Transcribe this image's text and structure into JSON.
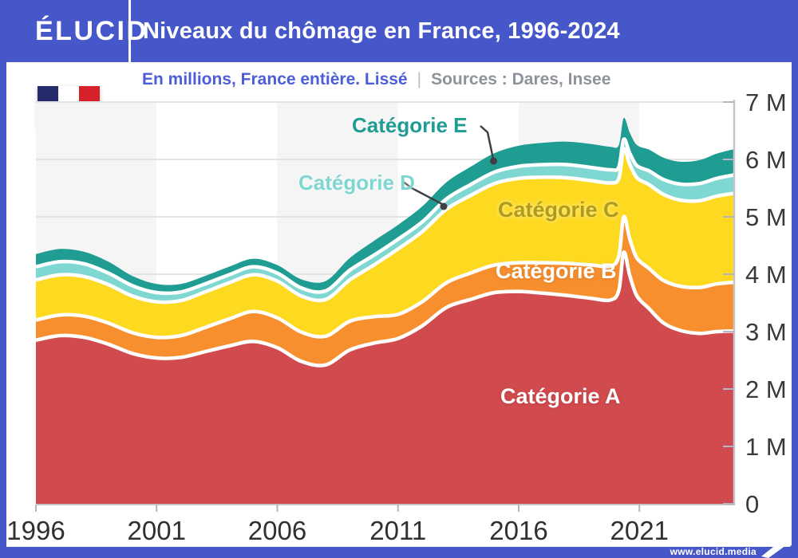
{
  "header": {
    "logo": "ÉLUCID",
    "title": "Niveaux du chômage en France, 1996-2024"
  },
  "subtitle": {
    "note": "En millions, France entière. Lissé",
    "separator": "|",
    "sources": "Sources : Dares, Insee"
  },
  "footer": {
    "url": "www.elucid.media"
  },
  "flag_icon": {
    "name": "france-flag-icon",
    "colors": [
      "#242a6a",
      "#ffffff",
      "#d6202a"
    ]
  },
  "chart_data": {
    "type": "area",
    "stacked": true,
    "unit": "millions",
    "ylim": [
      0,
      7
    ],
    "grid": true,
    "x": [
      1996,
      1997,
      1998,
      1999,
      2000,
      2001,
      2002,
      2003,
      2004,
      2005,
      2006,
      2007,
      2008,
      2009,
      2010,
      2011,
      2012,
      2013,
      2014,
      2015,
      2016,
      2017,
      2018,
      2019,
      2019.8,
      2020.15,
      2020.35,
      2020.6,
      2020.9,
      2021.4,
      2022,
      2022.7,
      2023.5,
      2024.2,
      2024.95
    ],
    "x_ticks": [
      {
        "value": 1996,
        "label": "1996"
      },
      {
        "value": 2001,
        "label": "2001"
      },
      {
        "value": 2006,
        "label": "2006"
      },
      {
        "value": 2011,
        "label": "2011"
      },
      {
        "value": 2016,
        "label": "2016"
      },
      {
        "value": 2021,
        "label": "2021"
      }
    ],
    "y_ticks": [
      {
        "value": 0,
        "label": "0"
      },
      {
        "value": 1,
        "label": "1 M"
      },
      {
        "value": 2,
        "label": "2 M"
      },
      {
        "value": 3,
        "label": "3 M"
      },
      {
        "value": 4,
        "label": "4 M"
      },
      {
        "value": 5,
        "label": "5 M"
      },
      {
        "value": 6,
        "label": "6 M"
      },
      {
        "value": 7,
        "label": "7 M"
      }
    ],
    "background_bands": {
      "width_years": 5,
      "colors": [
        "#f5f5f6",
        "#ffffff"
      ]
    },
    "separator_color": "#ffffff",
    "series": [
      {
        "name": "Catégorie A",
        "color": "#d14a4e",
        "label_color": "#ffffff",
        "values": [
          2.85,
          2.93,
          2.9,
          2.78,
          2.62,
          2.54,
          2.55,
          2.65,
          2.75,
          2.83,
          2.72,
          2.48,
          2.42,
          2.68,
          2.8,
          2.88,
          3.1,
          3.42,
          3.56,
          3.68,
          3.7,
          3.67,
          3.63,
          3.58,
          3.55,
          3.72,
          4.38,
          3.98,
          3.62,
          3.4,
          3.15,
          3.02,
          2.97,
          3.0,
          3.01
        ]
      },
      {
        "name": "Catégorie B",
        "color": "#f78f2e",
        "label_color": "#ffffff",
        "values": [
          0.35,
          0.36,
          0.37,
          0.37,
          0.36,
          0.36,
          0.38,
          0.42,
          0.47,
          0.52,
          0.52,
          0.51,
          0.5,
          0.5,
          0.46,
          0.42,
          0.42,
          0.43,
          0.46,
          0.48,
          0.5,
          0.53,
          0.56,
          0.58,
          0.59,
          0.6,
          0.62,
          0.64,
          0.66,
          0.7,
          0.74,
          0.77,
          0.8,
          0.83,
          0.85
        ]
      },
      {
        "name": "Catégorie C",
        "color": "#fdd920",
        "label_color": "#b19b1d",
        "values": [
          0.7,
          0.7,
          0.69,
          0.67,
          0.64,
          0.62,
          0.61,
          0.62,
          0.63,
          0.64,
          0.64,
          0.63,
          0.64,
          0.72,
          0.9,
          1.14,
          1.22,
          1.28,
          1.35,
          1.42,
          1.47,
          1.49,
          1.49,
          1.47,
          1.45,
          1.35,
          1.18,
          1.3,
          1.4,
          1.46,
          1.5,
          1.5,
          1.51,
          1.53,
          1.55
        ]
      },
      {
        "name": "Catégorie D",
        "color": "#7fd7d2",
        "label_color": "#7fd7d2",
        "values": [
          0.23,
          0.23,
          0.22,
          0.2,
          0.18,
          0.16,
          0.15,
          0.14,
          0.14,
          0.14,
          0.14,
          0.14,
          0.15,
          0.17,
          0.17,
          0.17,
          0.17,
          0.18,
          0.19,
          0.2,
          0.21,
          0.22,
          0.23,
          0.23,
          0.23,
          0.2,
          0.17,
          0.19,
          0.21,
          0.24,
          0.26,
          0.28,
          0.3,
          0.31,
          0.32
        ]
      },
      {
        "name": "Catégorie E",
        "color": "#1f9d92",
        "label_color": "#1f9d92",
        "values": [
          0.22,
          0.22,
          0.21,
          0.2,
          0.17,
          0.15,
          0.14,
          0.14,
          0.14,
          0.14,
          0.14,
          0.15,
          0.17,
          0.21,
          0.25,
          0.25,
          0.27,
          0.29,
          0.31,
          0.33,
          0.36,
          0.38,
          0.4,
          0.41,
          0.4,
          0.38,
          0.37,
          0.36,
          0.36,
          0.37,
          0.38,
          0.39,
          0.41,
          0.43,
          0.45
        ]
      }
    ]
  }
}
